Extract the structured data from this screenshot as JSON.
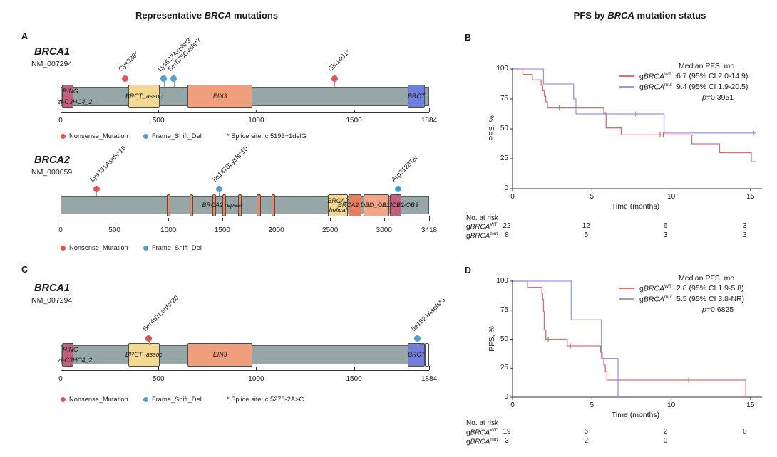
{
  "colors": {
    "nonsense": "#e4534f",
    "frameshift": "#4da0d6",
    "km_wt": "#d96e72",
    "km_mut": "#9a97e6",
    "bar_fill": "#97a6a6",
    "axis": "#333333"
  },
  "figure": {
    "left_title": [
      {
        "t": "Representative "
      },
      {
        "t": "BRCA",
        "i": true
      },
      {
        "t": " mutations"
      }
    ],
    "right_title": [
      {
        "t": "PFS by "
      },
      {
        "t": "BRCA",
        "i": true
      },
      {
        "t": " mutation status"
      }
    ],
    "panel_labels": {
      "a": "A",
      "b": "B",
      "c": "C",
      "d": "D"
    }
  },
  "chart_data": [
    {
      "type": "lollipop",
      "id": "a-brca1",
      "gene": "BRCA1",
      "transcript": "NM_007294",
      "length": 1884,
      "axis_ticks": [
        0,
        500,
        1000,
        1500,
        1884
      ],
      "domains": [
        {
          "start": 8,
          "end": 66,
          "color": "#c2607e"
        },
        {
          "start": 345,
          "end": 507,
          "color": "#f3d992"
        },
        {
          "start": 650,
          "end": 980,
          "color": "#ef9f7c"
        },
        {
          "start": 1775,
          "end": 1863,
          "color": "#707fdd"
        }
      ],
      "domain_labels": [
        {
          "text": "RING",
          "pos": 50,
          "valign": "top"
        },
        {
          "text": "zf-C3HC4_2",
          "pos": 73,
          "valign": "bottom"
        },
        {
          "text": "BRCT_assoc",
          "pos": 426,
          "valign": "mid"
        },
        {
          "text": "EIN3",
          "pos": 815,
          "valign": "mid"
        },
        {
          "text": "BRCT",
          "pos": 1819,
          "valign": "mid"
        }
      ],
      "mutations": [
        {
          "label": "Cys328*",
          "pos": 328,
          "type": "nonsense"
        },
        {
          "label": "Lys527Aspfs*3",
          "pos": 527,
          "type": "frameshift"
        },
        {
          "label": "Ser578Cysfs*7",
          "pos": 578,
          "type": "frameshift"
        },
        {
          "label": "Gln1401*",
          "pos": 1401,
          "type": "nonsense"
        }
      ],
      "legend": [
        {
          "label": "Nonsense_Mutation",
          "type": "nonsense"
        },
        {
          "label": "Frame_Shift_Del",
          "type": "frameshift"
        }
      ],
      "note": "* Splice site: c.5193+1delG"
    },
    {
      "type": "lollipop",
      "id": "a-brca2",
      "gene": "BRCA2",
      "transcript": "NM_000059",
      "length": 3418,
      "axis_ticks": [
        0,
        500,
        1000,
        1500,
        2000,
        2500,
        3000,
        3418
      ],
      "domains": [
        {
          "start": 986,
          "end": 1020,
          "color": "#e98a61"
        },
        {
          "start": 1196,
          "end": 1230,
          "color": "#e98a61"
        },
        {
          "start": 1405,
          "end": 1439,
          "color": "#e98a61"
        },
        {
          "start": 1501,
          "end": 1535,
          "color": "#e98a61"
        },
        {
          "start": 1648,
          "end": 1682,
          "color": "#e98a61"
        },
        {
          "start": 1821,
          "end": 1855,
          "color": "#e98a61"
        },
        {
          "start": 1955,
          "end": 1989,
          "color": "#e98a61"
        },
        {
          "start": 2479,
          "end": 2667,
          "color": "#f3d992"
        },
        {
          "start": 2674,
          "end": 2792,
          "color": "#e87e5a"
        },
        {
          "start": 2809,
          "end": 3048,
          "color": "#f1a685"
        },
        {
          "start": 3054,
          "end": 3160,
          "color": "#c2607e"
        }
      ],
      "domain_labels": [
        {
          "text": "BRCA2 repeat",
          "pos": 1500,
          "valign": "mid"
        },
        {
          "text": "BRCA2",
          "pos": 2573,
          "valign": "top"
        },
        {
          "text": "helical",
          "pos": 2573,
          "valign": "bottom"
        },
        {
          "text": "BRCA2 DBD_OB1/OB2/OB3",
          "pos": 2945,
          "valign": "mid"
        }
      ],
      "mutations": [
        {
          "label": "Lys331Asnfs*18",
          "pos": 331,
          "type": "nonsense"
        },
        {
          "label": "Ile1470Lysfs*10",
          "pos": 1470,
          "type": "frameshift"
        },
        {
          "label": "Arg3128Ter",
          "pos": 3128,
          "type": "frameshift"
        }
      ],
      "legend": [
        {
          "label": "Nonsense_Mutation",
          "type": "nonsense"
        },
        {
          "label": "Frame_Shift_Del",
          "type": "frameshift"
        }
      ],
      "note": null
    },
    {
      "type": "lollipop",
      "id": "c-brca1",
      "gene": "BRCA1",
      "transcript": "NM_007294",
      "length": 1884,
      "axis_ticks": [
        0,
        500,
        1000,
        1500,
        1884
      ],
      "domains": [
        {
          "start": 8,
          "end": 66,
          "color": "#c2607e"
        },
        {
          "start": 345,
          "end": 507,
          "color": "#f3d992"
        },
        {
          "start": 650,
          "end": 980,
          "color": "#ef9f7c"
        },
        {
          "start": 1775,
          "end": 1863,
          "color": "#707fdd"
        },
        {
          "start": 1863,
          "end": 1884,
          "color": "#ffffff"
        }
      ],
      "domain_labels": [
        {
          "text": "RING",
          "pos": 50,
          "valign": "top"
        },
        {
          "text": "zf-C3HC4_2",
          "pos": 73,
          "valign": "bottom"
        },
        {
          "text": "BRCT_assoc",
          "pos": 426,
          "valign": "mid"
        },
        {
          "text": "EIN3",
          "pos": 815,
          "valign": "mid"
        },
        {
          "text": "BRCT",
          "pos": 1819,
          "valign": "mid"
        }
      ],
      "mutations": [
        {
          "label": "Ser451Leufs*20",
          "pos": 451,
          "type": "nonsense"
        },
        {
          "label": "Ile1824Aspfs*3",
          "pos": 1824,
          "type": "frameshift"
        }
      ],
      "legend": [
        {
          "label": "Nonsense_Mutation",
          "type": "nonsense"
        },
        {
          "label": "Frame_Shift_Del",
          "type": "frameshift"
        }
      ],
      "note": "* Splice site: c.5278-2A>C"
    },
    {
      "type": "km",
      "id": "b",
      "legend_header": "Median PFS, mo",
      "p_parts": [
        {
          "t": "p",
          "i": true
        },
        {
          "t": "=0.3951"
        }
      ],
      "ylabel": "PFS, %",
      "xlabel": "Time (months)",
      "yticks": [
        100,
        75,
        50,
        25,
        0
      ],
      "xticks": [
        0,
        5,
        10,
        15
      ],
      "xmax": 15.5,
      "risk_header": "No. at risk",
      "series": [
        {
          "name_parts": [
            {
              "t": "g"
            },
            {
              "t": "BRCA",
              "i": true
            },
            {
              "t": "WT",
              "sup": true
            }
          ],
          "color": "#d96e72",
          "median_text": "6.7 (95% CI 2.0-14.9)",
          "steps": [
            [
              0,
              100
            ],
            [
              0.65,
              95.5
            ],
            [
              1.25,
              90.9
            ],
            [
              1.8,
              86.4
            ],
            [
              1.9,
              81.8
            ],
            [
              2.0,
              77.3
            ],
            [
              2.1,
              72.7
            ],
            [
              2.2,
              67.5
            ],
            [
              5.75,
              63
            ],
            [
              5.9,
              50.8
            ],
            [
              6.85,
              45
            ],
            [
              11.3,
              37.5
            ],
            [
              13.05,
              30
            ],
            [
              15.05,
              22.5
            ]
          ],
          "end": 15.35,
          "censors": [
            [
              2.95,
              67.5
            ],
            [
              9.3,
              45
            ],
            [
              9.5,
              45
            ]
          ],
          "risk": [
            "22",
            "12",
            "6",
            "3"
          ]
        },
        {
          "name_parts": [
            {
              "t": "g"
            },
            {
              "t": "BRCA",
              "i": true
            },
            {
              "t": "mut",
              "sup": true
            }
          ],
          "color": "#9a97e6",
          "median_text": "9.4 (95% CI 1.9-20.5)",
          "steps": [
            [
              0,
              100
            ],
            [
              1.95,
              87.5
            ],
            [
              3.85,
              75
            ],
            [
              4.0,
              62.5
            ],
            [
              9.55,
              46.5
            ]
          ],
          "end": 15.35,
          "censors": [
            [
              7.75,
              62.5
            ],
            [
              15.2,
              46.5
            ]
          ],
          "risk": [
            "8",
            "5",
            "3",
            "3"
          ]
        }
      ]
    },
    {
      "type": "km",
      "id": "d",
      "legend_header": "Median PFS, mo",
      "p_parts": [
        {
          "t": "p",
          "i": true
        },
        {
          "t": "=0.6825"
        }
      ],
      "ylabel": "PFS, %",
      "xlabel": "Time (months)",
      "yticks": [
        100,
        75,
        50,
        25,
        0
      ],
      "xticks": [
        0,
        5,
        10,
        15
      ],
      "xmax": 15.5,
      "risk_header": "No. at risk",
      "series": [
        {
          "name_parts": [
            {
              "t": "g"
            },
            {
              "t": "BRCA",
              "i": true
            },
            {
              "t": "WT",
              "sup": true
            }
          ],
          "color": "#d96e72",
          "median_text": "2.8 (95% CI 1.9-5.8)",
          "steps": [
            [
              0,
              100
            ],
            [
              0.95,
              94.7
            ],
            [
              1.85,
              89.5
            ],
            [
              1.9,
              84.2
            ],
            [
              1.95,
              73.7
            ],
            [
              2.0,
              57.9
            ],
            [
              2.1,
              50
            ],
            [
              3.45,
              44.2
            ],
            [
              5.55,
              38.7
            ],
            [
              5.65,
              33.1
            ],
            [
              5.75,
              27.6
            ],
            [
              5.85,
              22.1
            ],
            [
              5.95,
              14.7
            ],
            [
              14.7,
              0
            ]
          ],
          "end": 14.7,
          "censors": [
            [
              2.25,
              50
            ],
            [
              3.65,
              44.2
            ],
            [
              11.1,
              14.7
            ]
          ],
          "risk": [
            "19",
            "6",
            "2",
            "0"
          ]
        },
        {
          "name_parts": [
            {
              "t": "g"
            },
            {
              "t": "BRCA",
              "i": true
            },
            {
              "t": "mut",
              "sup": true
            }
          ],
          "color": "#9a97e6",
          "median_text": "5.5 (95% CI 3.8-NR)",
          "steps": [
            [
              0,
              100
            ],
            [
              3.7,
              66.7
            ],
            [
              5.6,
              33.3
            ],
            [
              6.65,
              0
            ]
          ],
          "end": 6.65,
          "censors": [],
          "risk": [
            "3",
            "2",
            "0",
            ""
          ]
        }
      ]
    }
  ]
}
